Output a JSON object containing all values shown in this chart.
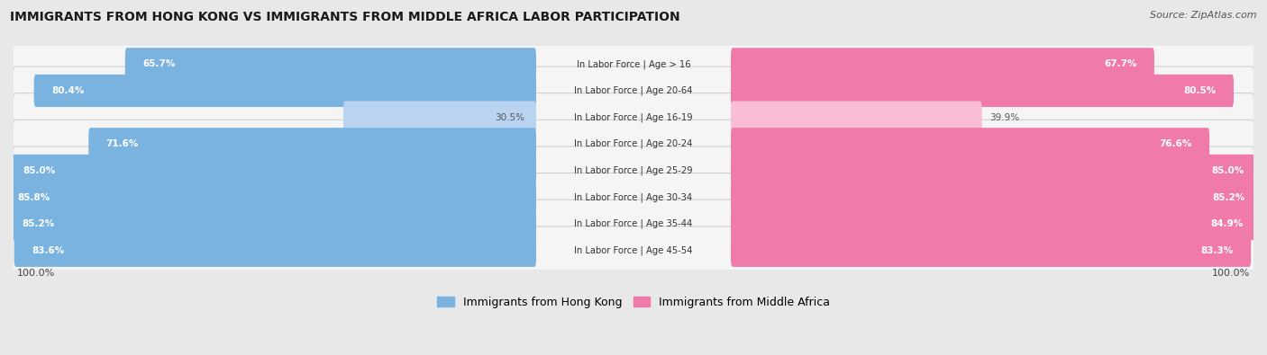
{
  "title": "IMMIGRANTS FROM HONG KONG VS IMMIGRANTS FROM MIDDLE AFRICA LABOR PARTICIPATION",
  "source": "Source: ZipAtlas.com",
  "categories": [
    "In Labor Force | Age > 16",
    "In Labor Force | Age 20-64",
    "In Labor Force | Age 16-19",
    "In Labor Force | Age 20-24",
    "In Labor Force | Age 25-29",
    "In Labor Force | Age 30-34",
    "In Labor Force | Age 35-44",
    "In Labor Force | Age 45-54"
  ],
  "hong_kong_values": [
    65.7,
    80.4,
    30.5,
    71.6,
    85.0,
    85.8,
    85.2,
    83.6
  ],
  "middle_africa_values": [
    67.7,
    80.5,
    39.9,
    76.6,
    85.0,
    85.2,
    84.9,
    83.3
  ],
  "hong_kong_color": "#7ab3e0",
  "hong_kong_color_light": "#b8d4f0",
  "middle_africa_color": "#f07bab",
  "middle_africa_color_light": "#f9bdd6",
  "background_color": "#e8e8e8",
  "row_bg_color": "#f5f5f5",
  "row_border_color": "#d0d0d0",
  "max_value": 100.0,
  "legend_label_hk": "Immigrants from Hong Kong",
  "legend_label_ma": "Immigrants from Middle Africa",
  "light_row_indices": [
    2
  ]
}
